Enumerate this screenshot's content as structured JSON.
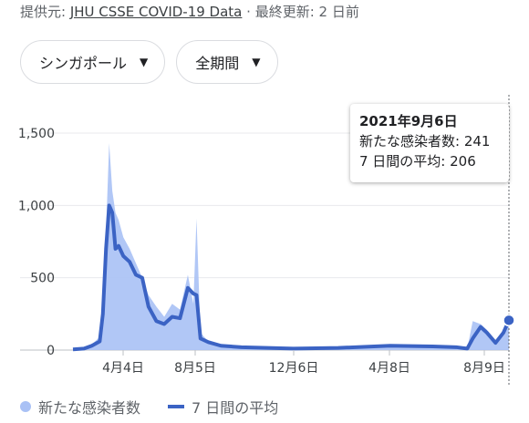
{
  "source": {
    "prefix": "提供元: ",
    "link": "JHU CSSE COVID-19 Data",
    "suffix": " · 最終更新: 2 日前"
  },
  "controls": {
    "location": "シンガポール",
    "period": "全期間"
  },
  "tooltip": {
    "date": "2021年9月6日",
    "new_cases": "新たな感染者数: 241",
    "avg": "7 日間の平均: 206"
  },
  "legend": {
    "new_cases": "新たな感染者数",
    "avg": "7 日間の平均"
  },
  "colors": {
    "bars": "#a9c1f5",
    "avg_line": "#3b63c4"
  },
  "chart_data": {
    "type": "area",
    "x_tick_labels": [
      "4月4日",
      "8月5日",
      "12月6日",
      "4月8日",
      "8月9日"
    ],
    "y_tick_labels": [
      "0",
      "500",
      "1,000",
      "1,500"
    ],
    "ylim": [
      0,
      1500
    ],
    "series": [
      {
        "name": "新たな感染者数",
        "x": [
          "2020-03-01",
          "2020-03-15",
          "2020-03-25",
          "2020-04-04",
          "2020-04-08",
          "2020-04-12",
          "2020-04-16",
          "2020-04-20",
          "2020-04-24",
          "2020-04-28",
          "2020-05-04",
          "2020-05-12",
          "2020-05-20",
          "2020-05-28",
          "2020-06-05",
          "2020-06-15",
          "2020-06-25",
          "2020-07-05",
          "2020-07-15",
          "2020-07-25",
          "2020-08-01",
          "2020-08-05",
          "2020-08-10",
          "2020-08-20",
          "2020-09-05",
          "2020-10-01",
          "2020-12-06",
          "2021-02-01",
          "2021-04-08",
          "2021-06-01",
          "2021-07-01",
          "2021-07-15",
          "2021-07-22",
          "2021-08-01",
          "2021-08-09",
          "2021-08-20",
          "2021-08-30",
          "2021-09-06"
        ],
        "values": [
          5,
          15,
          40,
          90,
          380,
          820,
          1430,
          1100,
          950,
          900,
          780,
          700,
          600,
          500,
          380,
          300,
          230,
          320,
          280,
          520,
          320,
          910,
          120,
          60,
          40,
          20,
          10,
          15,
          30,
          25,
          20,
          10,
          200,
          180,
          140,
          60,
          130,
          241
        ]
      },
      {
        "name": "7 日間の平均",
        "x": [
          "2020-03-01",
          "2020-03-15",
          "2020-03-25",
          "2020-04-04",
          "2020-04-08",
          "2020-04-12",
          "2020-04-16",
          "2020-04-20",
          "2020-04-24",
          "2020-04-28",
          "2020-05-04",
          "2020-05-12",
          "2020-05-20",
          "2020-05-28",
          "2020-06-05",
          "2020-06-15",
          "2020-06-25",
          "2020-07-05",
          "2020-07-15",
          "2020-07-25",
          "2020-08-01",
          "2020-08-05",
          "2020-08-10",
          "2020-08-20",
          "2020-09-05",
          "2020-10-01",
          "2020-12-06",
          "2021-02-01",
          "2021-04-08",
          "2021-06-01",
          "2021-07-01",
          "2021-07-15",
          "2021-07-22",
          "2021-08-01",
          "2021-08-09",
          "2021-08-20",
          "2021-08-30",
          "2021-09-06"
        ],
        "values": [
          5,
          10,
          30,
          60,
          250,
          700,
          1000,
          950,
          700,
          720,
          650,
          610,
          520,
          500,
          300,
          200,
          180,
          230,
          220,
          430,
          390,
          380,
          80,
          55,
          30,
          20,
          10,
          15,
          30,
          25,
          20,
          10,
          80,
          160,
          120,
          50,
          120,
          206
        ]
      }
    ],
    "highlight": {
      "date": "2021-09-06",
      "value": 206
    }
  }
}
